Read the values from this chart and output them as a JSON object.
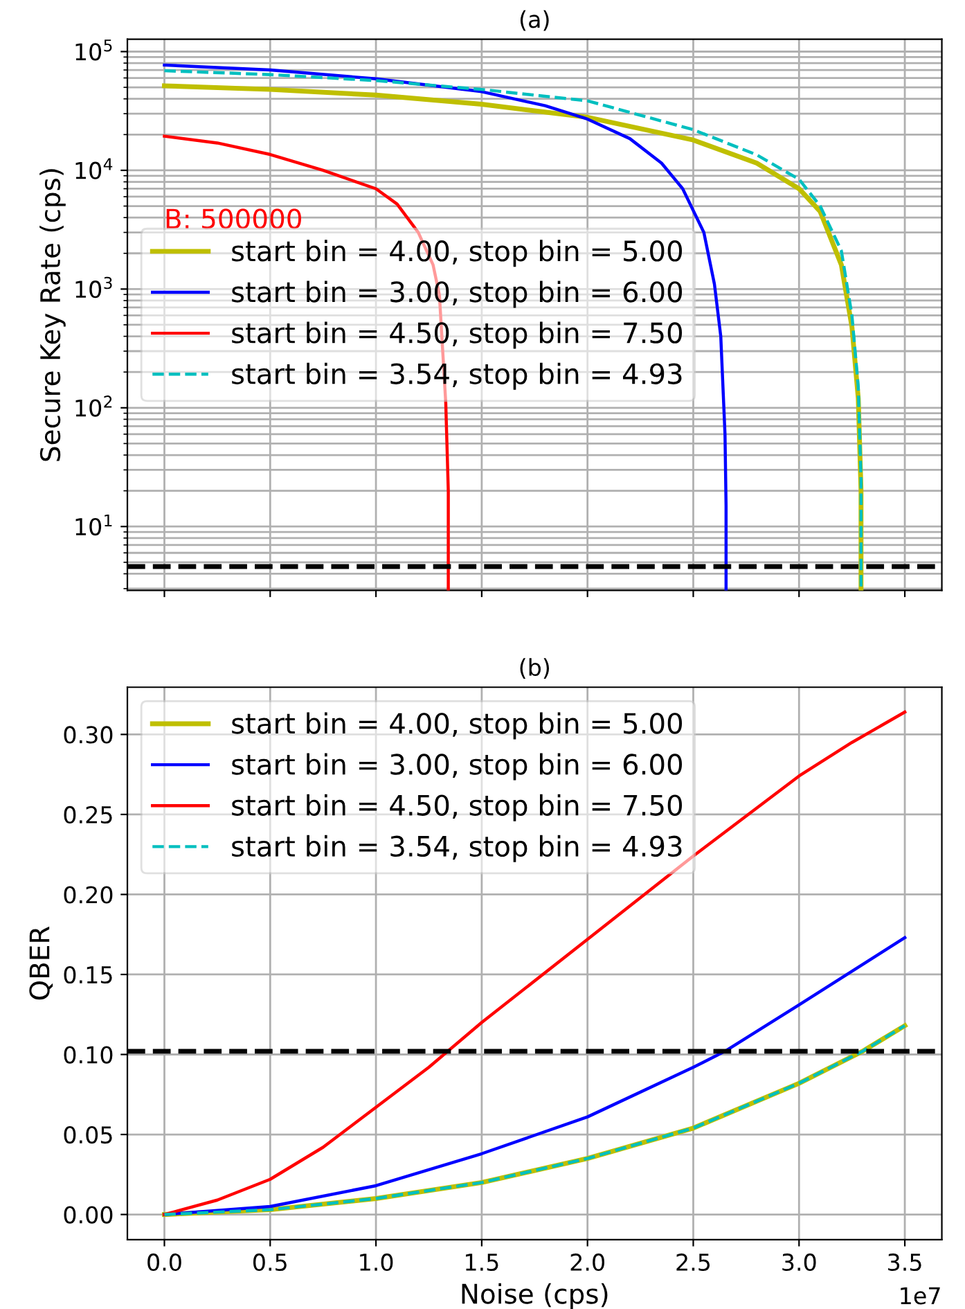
{
  "chart_data": [
    {
      "type": "line",
      "title": "(a)",
      "ylabel": "Secure Key Rate (cps)",
      "log": "y",
      "grid": true,
      "legend": "center left",
      "line_style": "solid",
      "tick_labels": "y",
      "xlim": [
        -0.175,
        3.675
      ],
      "xticks": [
        0,
        0.5,
        1,
        1.5,
        2,
        2.5,
        3,
        3.5
      ],
      "ylim": [
        2.9,
        127000
      ],
      "yticks": [
        {
          "value": 10,
          "label": "10$^{1}$"
        },
        {
          "value": 100,
          "label": "10$^{2}$"
        },
        {
          "value": 1000,
          "label": "10$^{3}$"
        },
        {
          "value": 10000,
          "label": "10$^{4}$"
        },
        {
          "value": 100000,
          "label": "10$^{5}$"
        }
      ],
      "ref_lines": [
        {
          "axis": "y",
          "value": 4.6,
          "label": null,
          "color": "#000000",
          "line_style": "dashed"
        }
      ],
      "annotations": [
        "B: 500000"
      ],
      "series": [
        {
          "name": "start bin = 4.00, stop bin = 5.00",
          "color": "#bfbf00",
          "x": [
            0,
            0.5,
            1,
            1.5,
            2,
            2.5,
            2.8,
            3,
            3.1,
            3.2,
            3.25,
            3.28,
            3.293,
            3.293
          ],
          "values": [
            51500,
            48000,
            43000,
            36000,
            28000,
            18000,
            11500,
            7000,
            4500,
            1600,
            480,
            120,
            20,
            2.9
          ]
        },
        {
          "name": "start bin = 3.00, stop bin = 6.00",
          "color": "#0000ff",
          "x": [
            0,
            0.5,
            1,
            1.5,
            1.8,
            2,
            2.2,
            2.35,
            2.45,
            2.55,
            2.6,
            2.63,
            2.65,
            2.655,
            2.655
          ],
          "values": [
            77000,
            70000,
            59000,
            46000,
            35000,
            27000,
            18500,
            11500,
            7000,
            3000,
            1100,
            400,
            60,
            15,
            2.9
          ]
        },
        {
          "name": "start bin = 4.50, stop bin = 7.50",
          "color": "#ff0000",
          "x": [
            0,
            0.25,
            0.5,
            0.75,
            1,
            1.1,
            1.2,
            1.27,
            1.3,
            1.33,
            1.342,
            1.342
          ],
          "values": [
            19400,
            17000,
            13600,
            10000,
            7000,
            5200,
            3000,
            1600,
            890,
            110,
            20,
            2.9
          ]
        },
        {
          "name": "start bin = 3.54, stop bin = 4.93",
          "color": "#00bfbf",
          "line_style": "dashed",
          "x": [
            0,
            0.5,
            1,
            1.5,
            2,
            2.5,
            2.8,
            3,
            3.1,
            3.2,
            3.25,
            3.28,
            3.293,
            3.293
          ],
          "values": [
            69000,
            64000,
            57000,
            48000,
            38500,
            22000,
            13500,
            8400,
            5000,
            2100,
            600,
            150,
            25,
            2.9
          ]
        }
      ]
    },
    {
      "type": "line",
      "title": "(b)",
      "xlabel": "Noise (cps)",
      "ylabel": "QBER",
      "grid": true,
      "legend": "upper left",
      "line_style": "solid",
      "xlim": [
        -0.175,
        3.675
      ],
      "xticks": [
        {
          "value": 0,
          "label": "0.0"
        },
        0.5,
        {
          "value": 1,
          "label": "1.0"
        },
        1.5,
        {
          "value": 2,
          "label": "2.0"
        },
        2.5,
        {
          "value": 3,
          "label": "3.0"
        },
        3.5
      ],
      "ylim": [
        -0.0157,
        0.3295
      ],
      "yticks": [
        {
          "value": 0,
          "label": "0.00"
        },
        0.05,
        {
          "value": 0.1,
          "label": "0.10"
        },
        0.15,
        {
          "value": 0.2,
          "label": "0.20"
        },
        0.25,
        {
          "value": 0.3,
          "label": "0.30"
        }
      ],
      "ref_lines": [
        {
          "axis": "y",
          "value": 0.102,
          "label": null,
          "color": "#000000",
          "line_style": "dashed"
        }
      ],
      "annotations": [
        "1e7"
      ],
      "series": [
        {
          "name": "start bin = 4.00, stop bin = 5.00",
          "color": "#bfbf00",
          "x": [
            0,
            0.5,
            1,
            1.5,
            2,
            2.5,
            3,
            3.3,
            3.5
          ],
          "values": [
            0,
            0.003,
            0.01,
            0.02,
            0.035,
            0.054,
            0.082,
            0.102,
            0.118
          ]
        },
        {
          "name": "start bin = 3.00, stop bin = 6.00",
          "color": "#0000ff",
          "x": [
            0,
            0.5,
            1,
            1.5,
            2,
            2.5,
            2.65,
            3,
            3.5
          ],
          "values": [
            0,
            0.005,
            0.018,
            0.038,
            0.061,
            0.092,
            0.102,
            0.131,
            0.173
          ]
        },
        {
          "name": "start bin = 4.50, stop bin = 7.50",
          "color": "#ff0000",
          "x": [
            0,
            0.25,
            0.5,
            0.75,
            1,
            1.25,
            1.5,
            2,
            2.5,
            3,
            3.25,
            3.5
          ],
          "values": [
            0,
            0.009,
            0.022,
            0.042,
            0.067,
            0.092,
            0.12,
            0.172,
            0.224,
            0.274,
            0.295,
            0.314
          ]
        },
        {
          "name": "start bin = 3.54, stop bin = 4.93",
          "color": "#00bfbf",
          "line_style": "dashed",
          "x": [
            0,
            0.5,
            1,
            1.5,
            2,
            2.5,
            3,
            3.3,
            3.5
          ],
          "values": [
            0,
            0.003,
            0.01,
            0.02,
            0.035,
            0.054,
            0.082,
            0.102,
            0.118
          ]
        }
      ]
    }
  ]
}
